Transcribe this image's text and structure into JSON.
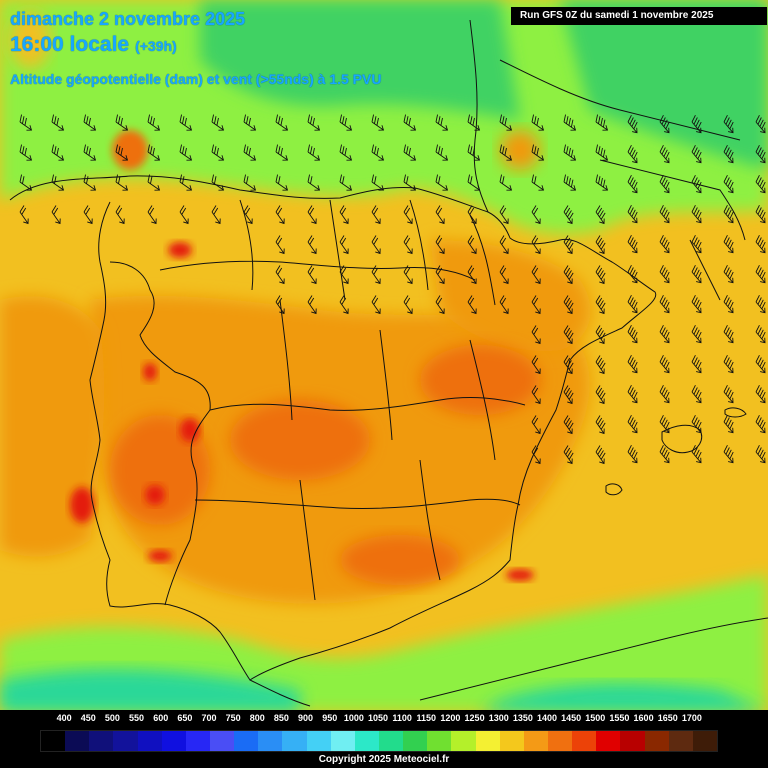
{
  "header": {
    "date": "dimanche 2 novembre 2025",
    "time": "16:00 locale",
    "offset": "(+39h)",
    "parameter": "Altitude géopotentielle (dam) et vent (>55nds) à 1.5 PVU",
    "run": "Run GFS 0Z du samedi 1 novembre 2025"
  },
  "legend": {
    "ticks": [
      "400",
      "450",
      "500",
      "550",
      "600",
      "650",
      "700",
      "750",
      "800",
      "850",
      "900",
      "950",
      "1000",
      "1050",
      "1100",
      "1150",
      "1200",
      "1250",
      "1300",
      "1350",
      "1400",
      "1450",
      "1500",
      "1550",
      "1600",
      "1650",
      "1700"
    ],
    "colors": [
      "#000000",
      "#0b0b55",
      "#10107a",
      "#12129b",
      "#1010c0",
      "#1010e0",
      "#2727f5",
      "#4a4ef5",
      "#1a6cf5",
      "#2a8ef5",
      "#36b0f5",
      "#44d0f5",
      "#70eef2",
      "#2ce8c8",
      "#22dc8c",
      "#32d050",
      "#70e030",
      "#b4f02a",
      "#f4f032",
      "#f4c81c",
      "#f49a16",
      "#f07010",
      "#ec4208",
      "#e00000",
      "#b80000",
      "#8a2800",
      "#5e2a10",
      "#3e1c08"
    ]
  },
  "palette": {
    "ocean": "#8ef042",
    "land_base": "#f2c020",
    "land_warm": "#f09a10",
    "land_hot": "#ee7010",
    "hot_spot": "#e41a10",
    "north_green": "#3fd264",
    "south_green": "#2cd898"
  },
  "copyright": "Copyright 2025 Meteociel.fr"
}
